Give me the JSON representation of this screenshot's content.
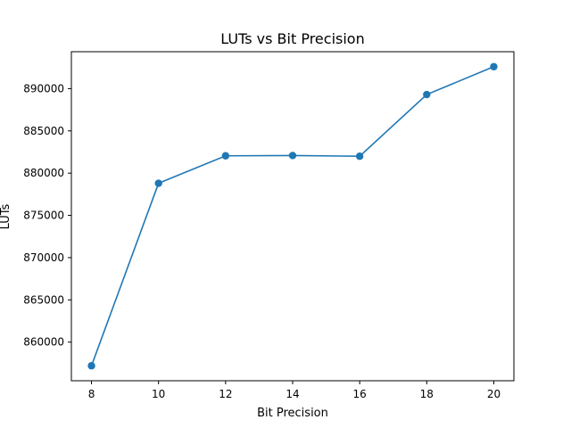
{
  "chart_data": {
    "type": "line",
    "title": "LUTs vs Bit Precision",
    "xlabel": "Bit Precision",
    "ylabel": "LUTs",
    "x": [
      8,
      10,
      12,
      14,
      16,
      18,
      20
    ],
    "series": [
      {
        "values": [
          857200,
          878800,
          882050,
          882080,
          882000,
          889300,
          892600
        ]
      }
    ],
    "xlim": [
      7.4,
      20.6
    ],
    "ylim": [
      855430,
      894370
    ],
    "x_ticks": [
      8,
      10,
      12,
      14,
      16,
      18,
      20
    ],
    "y_ticks": [
      860000,
      865000,
      870000,
      875000,
      880000,
      885000,
      890000
    ],
    "grid": false,
    "markers": "circle",
    "colors": {
      "line": "#1f77b4",
      "marker": "#1f77b4",
      "axes": "#000000"
    }
  }
}
